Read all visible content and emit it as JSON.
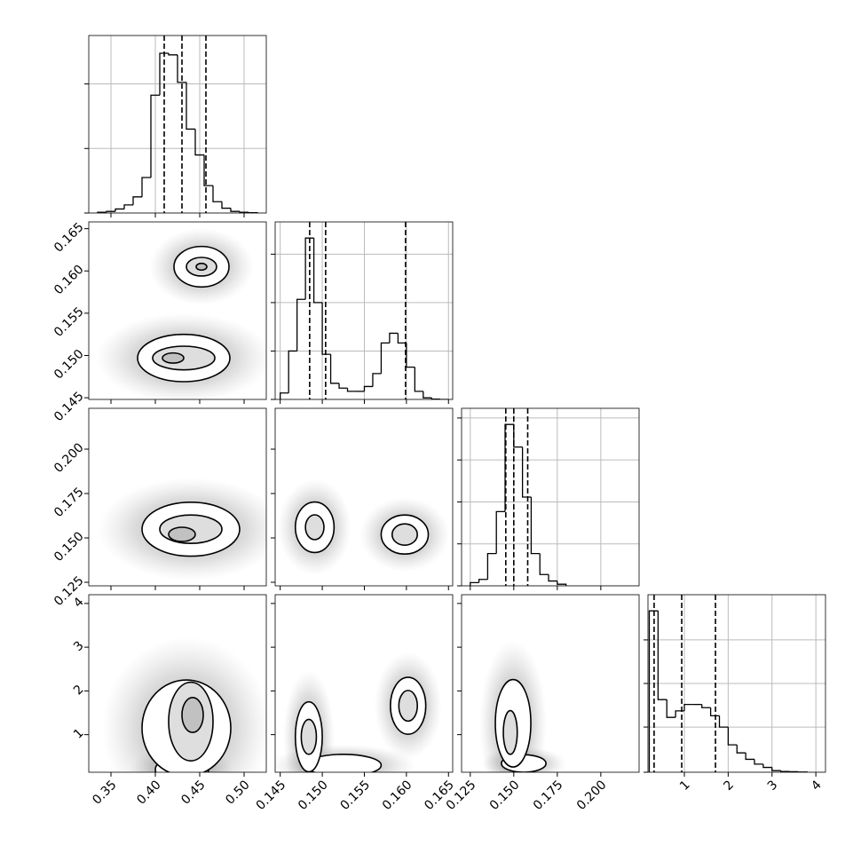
{
  "chart_data": [
    {
      "type": "histogram",
      "xlim": [
        0.325,
        0.525
      ],
      "ylim": [
        0,
        1.1
      ],
      "yticks": [
        0,
        0.4,
        0.8
      ],
      "bins": [
        0.335,
        0.345,
        0.355,
        0.365,
        0.375,
        0.385,
        0.395,
        0.405,
        0.415,
        0.425,
        0.435,
        0.445,
        0.455,
        0.465,
        0.475,
        0.485,
        0.495,
        0.505,
        0.515
      ],
      "counts": [
        0.005,
        0.01,
        0.025,
        0.05,
        0.1,
        0.22,
        0.73,
        0.99,
        0.98,
        0.81,
        0.52,
        0.36,
        0.17,
        0.07,
        0.03,
        0.01,
        0.005,
        0.002
      ],
      "quantiles": [
        0.41,
        0.43,
        0.457
      ]
    },
    {
      "type": "contour",
      "xlim": [
        0.325,
        0.525
      ],
      "ylim": [
        0.1448,
        0.1658
      ],
      "yticks": [
        0.145,
        {
          "value": 0.15,
          "label": "0.150"
        },
        0.155,
        {
          "value": 0.16,
          "label": "0.160"
        },
        0.165
      ],
      "clusters": [
        [
          {
            "cx": 0.452,
            "cy": 0.1605,
            "rx": 0.031,
            "ry": 0.0024
          },
          {
            "cx": 0.452,
            "cy": 0.1605,
            "rx": 0.017,
            "ry": 0.0011
          },
          {
            "cx": 0.452,
            "cy": 0.1605,
            "rx": 0.006,
            "ry": 0.0004
          }
        ],
        [
          {
            "cx": 0.432,
            "cy": 0.1497,
            "rx": 0.052,
            "ry": 0.0028
          },
          {
            "cx": 0.432,
            "cy": 0.1497,
            "rx": 0.035,
            "ry": 0.0014
          },
          {
            "cx": 0.42,
            "cy": 0.1497,
            "rx": 0.012,
            "ry": 0.0006
          }
        ]
      ]
    },
    {
      "type": "histogram",
      "xlim": [
        0.1444,
        0.1655
      ],
      "ylim": [
        0,
        1.1
      ],
      "yticks": [
        0,
        0.3,
        0.6,
        0.9
      ],
      "bins": [
        0.145,
        0.146,
        0.147,
        0.148,
        0.149,
        0.15,
        0.151,
        0.152,
        0.153,
        0.154,
        0.155,
        0.156,
        0.157,
        0.158,
        0.159,
        0.16,
        0.161,
        0.162,
        0.163,
        0.164,
        0.165
      ],
      "counts": [
        0.04,
        0.3,
        0.62,
        1.0,
        0.6,
        0.28,
        0.1,
        0.07,
        0.05,
        0.05,
        0.08,
        0.16,
        0.35,
        0.41,
        0.35,
        0.2,
        0.05,
        0.01,
        0.002,
        0
      ],
      "quantiles": [
        0.1485,
        0.1504,
        0.1599
      ]
    },
    {
      "type": "contour",
      "xlim": [
        0.325,
        0.525
      ],
      "ylim": [
        0.123,
        0.223
      ],
      "yticks": [
        {
          "value": 0.125,
          "label": "0.125"
        },
        {
          "value": 0.15,
          "label": "0.150"
        },
        0.175,
        {
          "value": 0.2,
          "label": "0.200"
        }
      ],
      "clusters": [
        [
          {
            "cx": 0.44,
            "cy": 0.1549,
            "rx": 0.055,
            "ry": 0.0152
          },
          {
            "cx": 0.44,
            "cy": 0.1549,
            "rx": 0.035,
            "ry": 0.008
          },
          {
            "cx": 0.43,
            "cy": 0.152,
            "rx": 0.015,
            "ry": 0.004
          }
        ]
      ]
    },
    {
      "type": "contour",
      "xlim": [
        0.1444,
        0.1655
      ],
      "ylim": [
        0.123,
        0.223
      ],
      "clusters": [
        [
          {
            "cx": 0.1491,
            "cy": 0.156,
            "rx": 0.0023,
            "ry": 0.0142
          },
          {
            "cx": 0.1491,
            "cy": 0.156,
            "rx": 0.0011,
            "ry": 0.007
          }
        ],
        [
          {
            "cx": 0.1598,
            "cy": 0.1519,
            "rx": 0.0028,
            "ry": 0.011
          },
          {
            "cx": 0.1598,
            "cy": 0.1519,
            "rx": 0.0015,
            "ry": 0.006
          }
        ]
      ]
    },
    {
      "type": "histogram",
      "xlim": [
        0.12,
        0.222
      ],
      "ylim": [
        0,
        1.1
      ],
      "yticks": [
        0,
        0.26,
        0.52,
        0.78,
        1.04
      ],
      "bins": [
        0.125,
        0.13,
        0.135,
        0.14,
        0.145,
        0.15,
        0.155,
        0.16,
        0.165,
        0.17,
        0.175,
        0.18
      ],
      "counts": [
        0.02,
        0.04,
        0.2,
        0.46,
        1.0,
        0.86,
        0.55,
        0.2,
        0.07,
        0.03,
        0.01
      ],
      "quantiles": [
        0.1454,
        0.15,
        0.158
      ]
    },
    {
      "type": "contour",
      "xlim": [
        0.325,
        0.525
      ],
      "ylim": [
        0.14,
        4.2
      ],
      "xticks": [
        0.35,
        {
          "value": 0.4,
          "label": "0.40"
        },
        0.45,
        {
          "value": 0.5,
          "label": "0.50"
        }
      ],
      "yticks": [
        1,
        2,
        3,
        4
      ],
      "clusters": [
        [
          {
            "cx": 0.43,
            "cy": 0.2,
            "rx": 0.03,
            "ry": 0.3
          }
        ],
        [
          {
            "cx": 0.435,
            "cy": 1.15,
            "rx": 0.05,
            "ry": 1.1
          },
          {
            "cx": 0.44,
            "cy": 1.3,
            "rx": 0.025,
            "ry": 0.9
          },
          {
            "cx": 0.442,
            "cy": 1.45,
            "rx": 0.012,
            "ry": 0.4
          }
        ]
      ]
    },
    {
      "type": "contour",
      "xlim": [
        0.1444,
        0.1655
      ],
      "ylim": [
        0.14,
        4.2
      ],
      "xticks": [
        0.145,
        {
          "value": 0.15,
          "label": "0.150"
        },
        0.155,
        {
          "value": 0.16,
          "label": "0.160"
        },
        0.165
      ],
      "clusters": [
        [
          {
            "cx": 0.1525,
            "cy": 0.3,
            "rx": 0.0045,
            "ry": 0.25
          }
        ],
        [
          {
            "cx": 0.1484,
            "cy": 0.95,
            "rx": 0.0016,
            "ry": 0.8
          },
          {
            "cx": 0.1484,
            "cy": 0.95,
            "rx": 0.0009,
            "ry": 0.4
          }
        ],
        [
          {
            "cx": 0.1602,
            "cy": 1.66,
            "rx": 0.0021,
            "ry": 0.65
          },
          {
            "cx": 0.1602,
            "cy": 1.66,
            "rx": 0.0011,
            "ry": 0.35
          }
        ]
      ]
    },
    {
      "type": "contour",
      "xlim": [
        0.12,
        0.222
      ],
      "ylim": [
        0.14,
        4.2
      ],
      "xticks": [
        {
          "value": 0.125,
          "label": "0.125"
        },
        {
          "value": 0.15,
          "label": "0.150"
        },
        0.175,
        {
          "value": 0.2,
          "label": "0.200"
        }
      ],
      "clusters": [
        [
          {
            "cx": 0.1557,
            "cy": 0.34,
            "rx": 0.0128,
            "ry": 0.2
          }
        ],
        [
          {
            "cx": 0.1496,
            "cy": 1.26,
            "rx": 0.0102,
            "ry": 1.0
          },
          {
            "cx": 0.148,
            "cy": 1.05,
            "rx": 0.004,
            "ry": 0.5
          }
        ]
      ]
    },
    {
      "type": "histogram",
      "xlim": [
        0.17,
        4.22
      ],
      "ylim": [
        0,
        1.1
      ],
      "yticks": [
        0,
        0.28,
        0.55,
        0.82
      ],
      "xticks": [
        1,
        2,
        3,
        4
      ],
      "bins": [
        0.2,
        0.4,
        0.6,
        0.8,
        1.0,
        1.2,
        1.4,
        1.6,
        1.8,
        2.0,
        2.2,
        2.4,
        2.6,
        2.8,
        3.0,
        3.2,
        3.4,
        3.6,
        3.8
      ],
      "counts": [
        1.0,
        0.45,
        0.34,
        0.38,
        0.42,
        0.42,
        0.4,
        0.35,
        0.28,
        0.17,
        0.12,
        0.08,
        0.05,
        0.03,
        0.01,
        0.005,
        0.003,
        0.001
      ],
      "quantiles": [
        0.31,
        0.94,
        1.71
      ]
    }
  ]
}
